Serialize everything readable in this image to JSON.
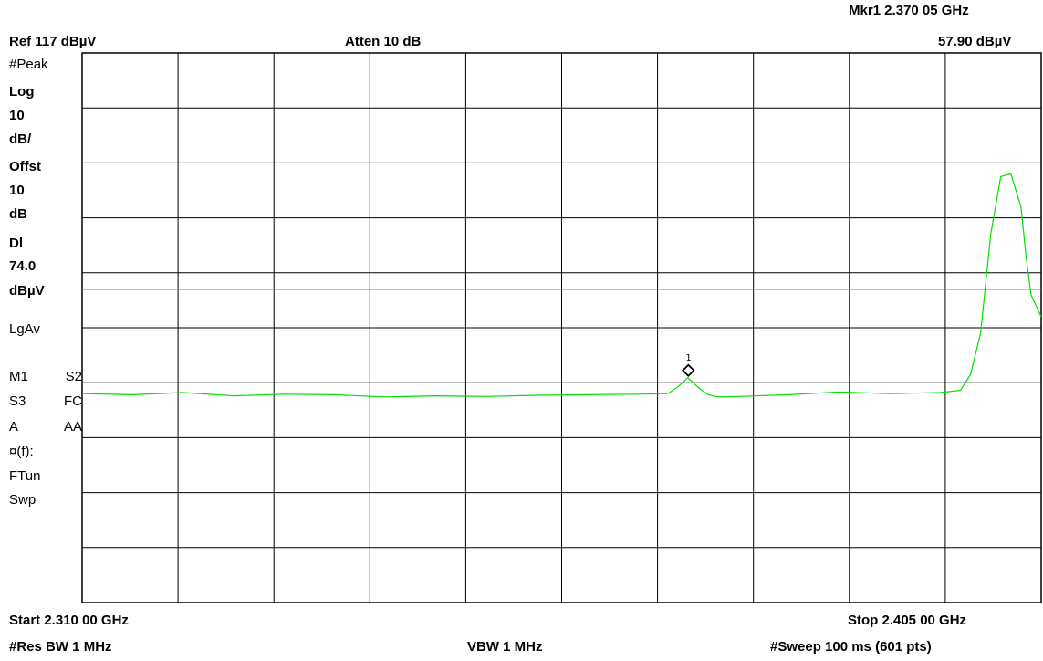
{
  "header": {
    "marker_readout": "Mkr1  2.370 05 GHz",
    "ref_level": "Ref 117 dBµV",
    "attenuation": "Atten 10 dB",
    "marker_amplitude": "57.90 dBµV"
  },
  "sidebar": {
    "detector": "#Peak",
    "scale_type": "Log",
    "scale_value": "10",
    "scale_unit": "dB/",
    "offset_label": "Offst",
    "offset_value": "10",
    "offset_unit": "dB",
    "display_line_label": "Dl",
    "display_line_value": "74.0",
    "display_line_unit": "dBµV",
    "averaging": "LgAv",
    "m1": "M1",
    "s2": "S2",
    "s3": "S3",
    "fc": "FC",
    "a": "A",
    "aa": "AA",
    "ftune_symbol": "¤(f):",
    "ftun": "FTun",
    "swp": "Swp"
  },
  "footer": {
    "start": "Start 2.310 00 GHz",
    "stop": "Stop 2.405 00 GHz",
    "res_bw": "#Res BW 1 MHz",
    "vbw": "VBW 1 MHz",
    "sweep": "#Sweep 100 ms (601 pts)"
  },
  "marker": {
    "label": "1"
  },
  "colors": {
    "trace": "#00e000",
    "grid": "#000000",
    "background": "#ffffff"
  },
  "chart_data": {
    "type": "line",
    "x_unit": "GHz",
    "y_unit": "dBµV",
    "xlim": [
      2.31,
      2.405
    ],
    "ylim": [
      17,
      117
    ],
    "grid": true,
    "divisions": {
      "x": 10,
      "y": 10
    },
    "display_line": 74.0,
    "marker": {
      "name": "1",
      "x": 2.37005,
      "y": 57.9
    },
    "series": [
      {
        "x": [
          2.31,
          2.315,
          2.32,
          2.325,
          2.33,
          2.335,
          2.34,
          2.345,
          2.35,
          2.355,
          2.36,
          2.365,
          2.368,
          2.369,
          2.37,
          2.3711,
          2.372,
          2.373,
          2.375,
          2.38,
          2.385,
          2.39,
          2.395,
          2.397,
          2.398,
          2.399,
          2.4,
          2.401,
          2.402,
          2.403,
          2.4035,
          2.404,
          2.405
        ],
        "y": [
          55.0,
          54.8,
          55.2,
          54.6,
          54.9,
          54.8,
          54.4,
          54.6,
          54.5,
          54.7,
          54.8,
          54.9,
          55.0,
          56.2,
          57.9,
          56.0,
          54.8,
          54.4,
          54.5,
          54.8,
          55.3,
          55.0,
          55.2,
          55.6,
          58.5,
          66.0,
          84.0,
          94.5,
          95.0,
          89.0,
          80.0,
          73.0,
          69.0
        ]
      }
    ]
  }
}
